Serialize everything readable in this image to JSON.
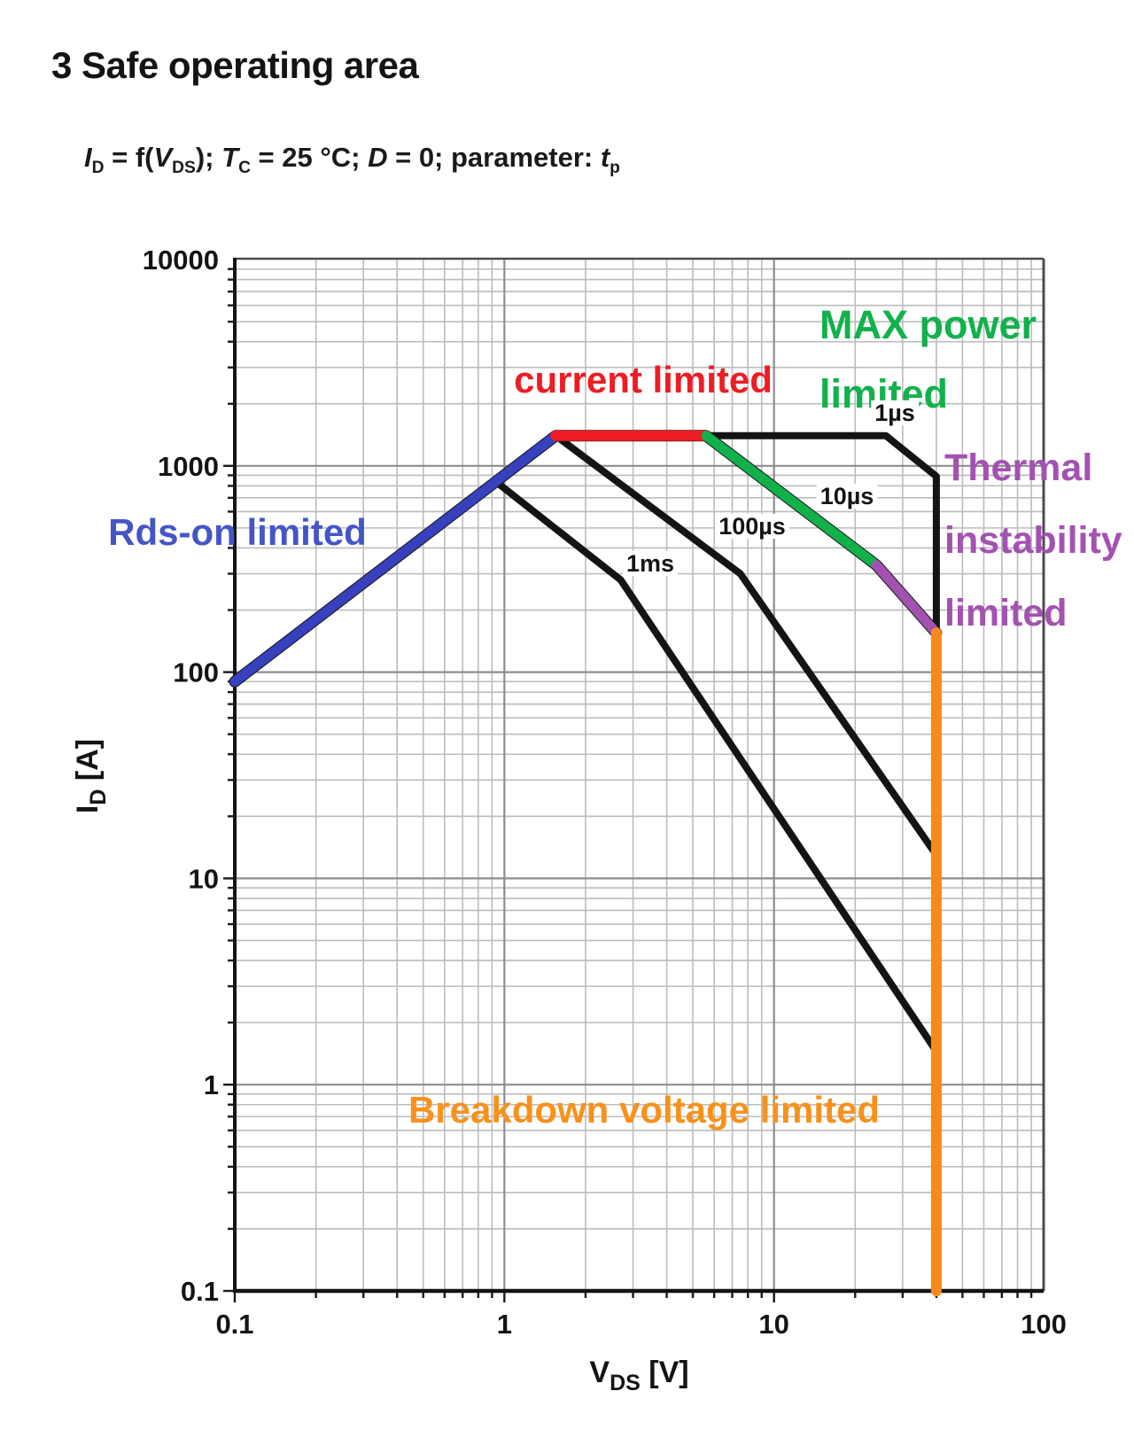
{
  "page": {
    "title": "3 Safe operating area"
  },
  "subtitle": {
    "segments": [
      {
        "text": "I",
        "italic": true
      },
      {
        "text": "D",
        "sub": true
      },
      {
        "text": " = f("
      },
      {
        "text": "V",
        "italic": true
      },
      {
        "text": "DS",
        "sub": true
      },
      {
        "text": "); "
      },
      {
        "text": "T",
        "italic": true
      },
      {
        "text": "C",
        "sub": true
      },
      {
        "text": " = 25 °C; "
      },
      {
        "text": "D",
        "italic": true
      },
      {
        "text": " = 0; parameter: "
      },
      {
        "text": "t",
        "italic": true
      },
      {
        "text": "p",
        "sub": true
      }
    ]
  },
  "chart_data": {
    "type": "line",
    "title": "Safe operating area; drain current vs drain-source voltage",
    "x_scale": "log",
    "y_scale": "log",
    "grid": "on",
    "x_axis": {
      "min": 0.1,
      "max": 100,
      "label_segments": [
        {
          "text": "V"
        },
        {
          "text": "DS",
          "sub": true
        },
        {
          "text": " [V]"
        }
      ],
      "ticks": [
        {
          "value": 0.1,
          "label": "0.1"
        },
        {
          "value": 1,
          "label": "1"
        },
        {
          "value": 10,
          "label": "10"
        },
        {
          "value": 100,
          "label": "100"
        }
      ]
    },
    "y_axis": {
      "min": 0.1,
      "max": 10000,
      "label_segments": [
        {
          "text": "I"
        },
        {
          "text": "D",
          "sub": true
        },
        {
          "text": " [A]"
        }
      ],
      "ticks": [
        {
          "value": 0.1,
          "label": "0.1"
        },
        {
          "value": 1,
          "label": "1"
        },
        {
          "value": 10,
          "label": "10"
        },
        {
          "value": 100,
          "label": "100"
        },
        {
          "value": 1000,
          "label": "1000"
        },
        {
          "value": 10000,
          "label": "10000"
        }
      ]
    },
    "series": [
      {
        "name": "pulse-10us-base",
        "pulse": "10µs base curve",
        "color": "#141414",
        "width": 13,
        "points": [
          [
            0.1,
            90
          ],
          [
            1.55,
            1400
          ],
          [
            5.6,
            1400
          ],
          [
            24,
            330
          ],
          [
            40,
            155
          ]
        ]
      },
      {
        "name": "pulse-1us",
        "pulse": "1µs",
        "color": "#141414",
        "width": 8,
        "points": [
          [
            5.6,
            1400
          ],
          [
            26,
            1400
          ],
          [
            40,
            890
          ],
          [
            40,
            155
          ]
        ]
      },
      {
        "name": "pulse-100us",
        "pulse": "100µs",
        "color": "#141414",
        "width": 8,
        "points": [
          [
            1.55,
            1400
          ],
          [
            7.5,
            300
          ],
          [
            40,
            13
          ]
        ]
      },
      {
        "name": "pulse-1ms",
        "pulse": "1ms",
        "color": "#141414",
        "width": 8,
        "points": [
          [
            0.95,
            820
          ],
          [
            2.7,
            280
          ],
          [
            40,
            1.45
          ]
        ]
      },
      {
        "name": "rds-on-limited",
        "region": "Rds-on limited",
        "color": "#3740bd",
        "width": 11,
        "points": [
          [
            0.1,
            90
          ],
          [
            1.55,
            1400
          ]
        ]
      },
      {
        "name": "current-limited",
        "region": "current limited",
        "color": "#ee1c23",
        "width": 12,
        "points": [
          [
            1.55,
            1400
          ],
          [
            5.6,
            1400
          ]
        ]
      },
      {
        "name": "max-power-limited",
        "region": "MAX power limited",
        "color": "#12b14b",
        "width": 11,
        "points": [
          [
            5.6,
            1400
          ],
          [
            24,
            330
          ]
        ]
      },
      {
        "name": "thermal-instability-limited",
        "region": "Thermal instability limited",
        "color": "#a352b1",
        "width": 11,
        "points": [
          [
            24,
            330
          ],
          [
            40,
            155
          ]
        ]
      },
      {
        "name": "breakdown-voltage-limited",
        "region": "Breakdown voltage limited",
        "color": "#f8891c",
        "width": 12,
        "points": [
          [
            40,
            155
          ],
          [
            40,
            0.1
          ]
        ]
      }
    ],
    "curve_labels": {
      "us1": {
        "text": "1µs"
      },
      "us10": {
        "text": "10µs"
      },
      "us100": {
        "text": "100µs"
      },
      "ms1": {
        "text": "1ms"
      }
    },
    "annotations": {
      "rds_on": {
        "text": "Rds-on limited",
        "color": "#4456c6"
      },
      "current": {
        "text": "current limited",
        "color": "#ee1c23"
      },
      "max_power": {
        "line1": "MAX power",
        "line2": "limited",
        "color": "#12b14b"
      },
      "thermal": {
        "line1": "Thermal",
        "line2": "instability",
        "line3": "limited",
        "color": "#a352b1"
      },
      "breakdown": {
        "text": "Breakdown voltage limited",
        "color": "#f8911c"
      }
    }
  }
}
